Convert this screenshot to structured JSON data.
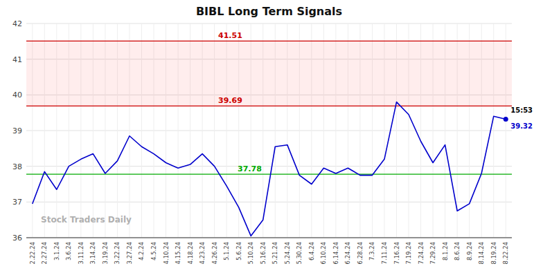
{
  "chart_data": {
    "type": "line",
    "title": "BIBL Long Term Signals",
    "categories": [
      "2.22.24",
      "2.27.24",
      "3.1.24",
      "3.6.24",
      "3.11.24",
      "3.14.24",
      "3.19.24",
      "3.22.24",
      "3.27.24",
      "4.2.24",
      "4.5.24",
      "4.10.24",
      "4.15.24",
      "4.18.24",
      "4.23.24",
      "4.26.24",
      "5.1.24",
      "5.6.24",
      "5.10.24",
      "5.16.24",
      "5.21.24",
      "5.24.24",
      "5.30.24",
      "6.4.24",
      "6.10.24",
      "6.14.24",
      "6.24.24",
      "6.28.24",
      "7.3.24",
      "7.11.24",
      "7.16.24",
      "7.19.24",
      "7.24.24",
      "7.29.24",
      "8.1.24",
      "8.6.24",
      "8.9.24",
      "8.14.24",
      "8.19.24",
      "8.22.24"
    ],
    "values": [
      36.95,
      37.85,
      37.35,
      38.0,
      38.2,
      38.35,
      37.8,
      38.15,
      38.85,
      38.55,
      38.35,
      38.1,
      37.95,
      38.05,
      38.35,
      38.0,
      37.45,
      36.85,
      36.05,
      36.5,
      38.55,
      38.6,
      37.75,
      37.5,
      37.95,
      37.8,
      37.95,
      37.75,
      37.75,
      38.2,
      39.8,
      39.45,
      38.7,
      38.1,
      38.6,
      36.75,
      36.95,
      37.8,
      39.4,
      39.32
    ],
    "color": "#0000cc",
    "ylim": [
      36,
      42
    ],
    "yticks": [
      36,
      37,
      38,
      39,
      40,
      41,
      42
    ],
    "grid": true,
    "reference_lines": [
      {
        "value": 41.51,
        "label": "41.51",
        "color": "#cc0000"
      },
      {
        "value": 39.69,
        "label": "39.69",
        "color": "#cc0000"
      },
      {
        "value": 37.78,
        "label": "37.78",
        "color": "#00aa00"
      }
    ],
    "bands": [
      {
        "from": 39.69,
        "to": 41.51,
        "color": "#ff0000"
      }
    ],
    "annotations": [
      {
        "text": "15:53"
      },
      {
        "text": "39.32",
        "value": 39.32
      }
    ],
    "watermark": "Stock Traders Daily"
  }
}
